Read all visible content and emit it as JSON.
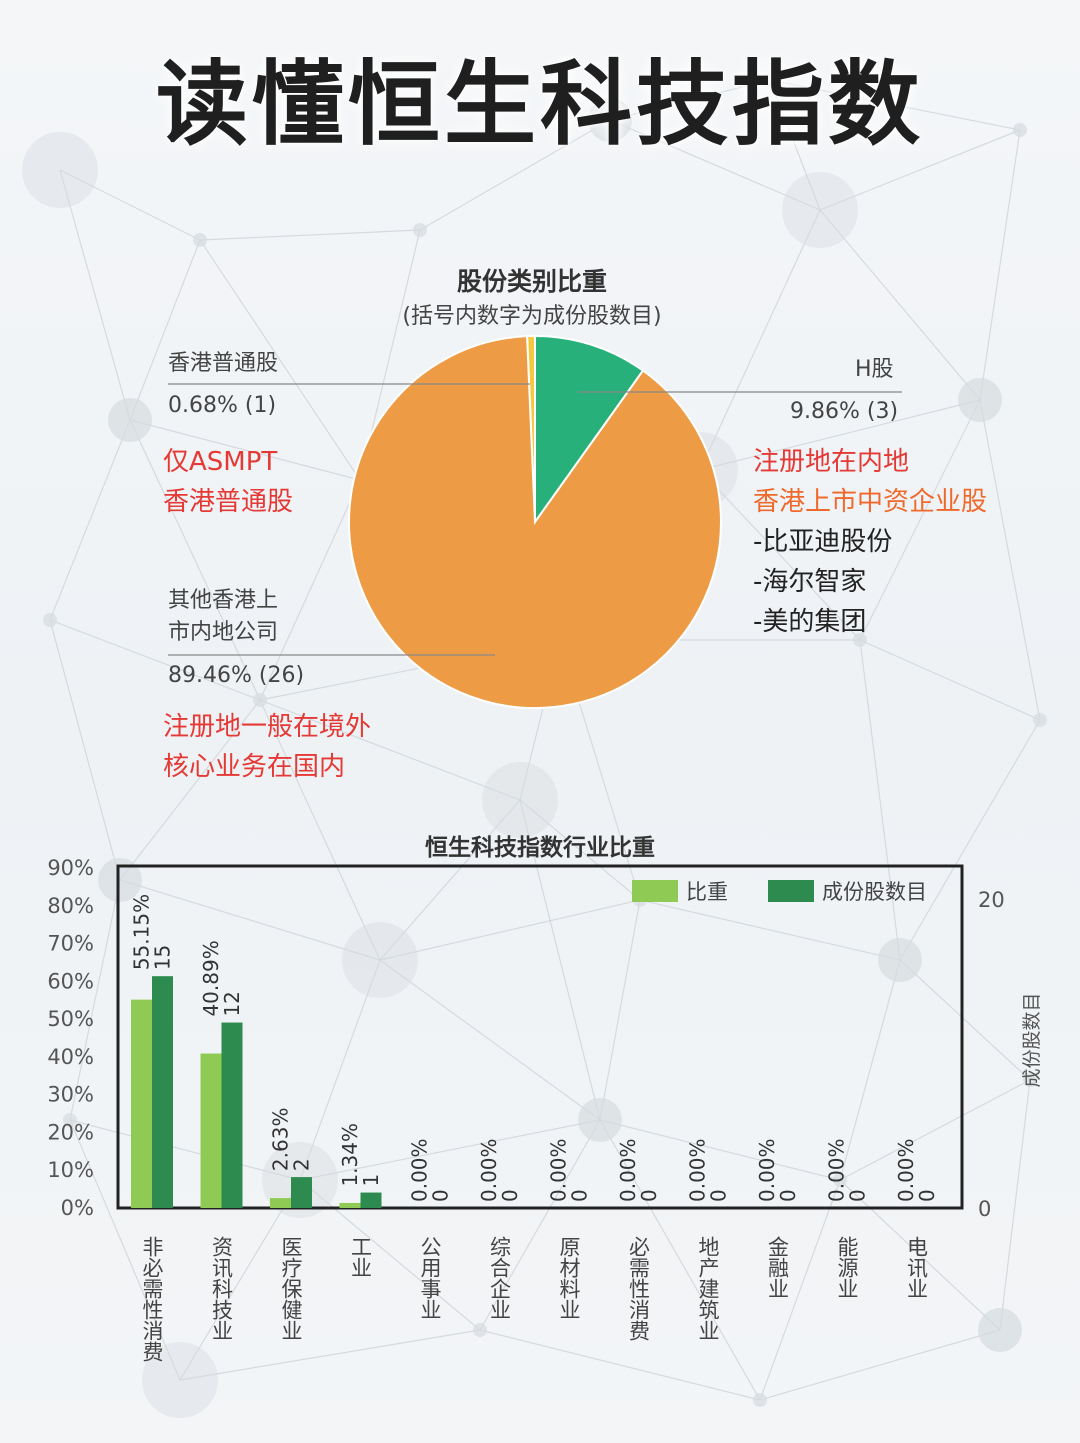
{
  "header": {
    "title": "读懂恒生科技指数"
  },
  "pie": {
    "title": "股份类别比重",
    "subtitle": "(括号内数字为成份股数目)",
    "labels": {
      "hk_ordinary_name": "香港普通股",
      "hk_ordinary_value": "0.68% (1)",
      "h_share_name": "H股",
      "h_share_value": "9.86% (3)",
      "other_name_line1": "其他香港上",
      "other_name_line2": "市内地公司",
      "other_value": "89.46% (26)"
    },
    "notes": {
      "hk_ordinary": [
        "仅ASMPT",
        "香港普通股"
      ],
      "h_share_red": [
        "注册地在内地",
        "香港上市中资企业股"
      ],
      "h_share_examples": [
        "-比亚迪股份",
        "-海尔智家",
        "-美的集团"
      ],
      "other": [
        "注册地一般在境外",
        "核心业务在国内"
      ]
    }
  },
  "chart_data": [
    {
      "type": "pie",
      "title": "股份类别比重",
      "subtitle": "(括号内数字为成份股数目)",
      "slices": [
        {
          "name": "香港普通股",
          "value": 0.68,
          "count": 1,
          "color": "#f5c842"
        },
        {
          "name": "H股",
          "value": 9.86,
          "count": 3,
          "color": "#27b07a"
        },
        {
          "name": "其他香港上市内地公司",
          "value": 89.46,
          "count": 26,
          "color": "#ee9b45"
        }
      ]
    },
    {
      "type": "bar",
      "title": "恒生科技指数行业比重",
      "categories": [
        "非必需性消费",
        "资讯科技业",
        "医疗保健业",
        "工业",
        "公用事业",
        "综合企业",
        "原材料业",
        "必需性消费",
        "地产建筑业",
        "金融业",
        "能源业",
        "电讯业"
      ],
      "series": [
        {
          "name": "比重",
          "axis": "left",
          "color": "#8fcb54",
          "values": [
            55.15,
            40.89,
            2.63,
            1.34,
            0,
            0,
            0,
            0,
            0,
            0,
            0,
            0
          ],
          "labels": [
            "55.15%",
            "40.89%",
            "2.63%",
            "1.34%",
            "0.00%",
            "0.00%",
            "0.00%",
            "0.00%",
            "0.00%",
            "0.00%",
            "0.00%",
            "0.00%"
          ]
        },
        {
          "name": "成份股数目",
          "axis": "right",
          "color": "#2e8b4f",
          "values": [
            15,
            12,
            2,
            1,
            0,
            0,
            0,
            0,
            0,
            0,
            0,
            0
          ],
          "labels": [
            "15",
            "12",
            "2",
            "1",
            "0",
            "0",
            "0",
            "0",
            "0",
            "0",
            "0",
            "0"
          ]
        }
      ],
      "ylim_left": [
        0,
        90
      ],
      "yticks_left": [
        "0%",
        "10%",
        "20%",
        "30%",
        "40%",
        "50%",
        "60%",
        "70%",
        "80%",
        "90%"
      ],
      "ylim_right": [
        0,
        22
      ],
      "yticks_right": [
        "0",
        "20"
      ],
      "ylabel_right": "成份股数目",
      "legend": "top-right"
    }
  ]
}
